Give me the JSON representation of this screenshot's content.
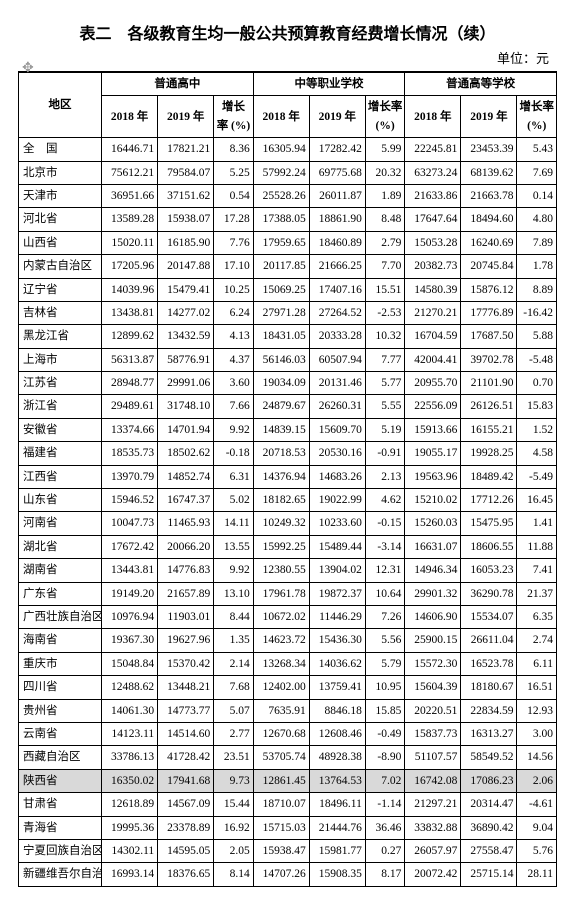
{
  "title": "表二　各级教育生均一般公共预算教育经费增长情况（续）",
  "unit": "单位：元",
  "headers": {
    "region": "地区",
    "group1": "普通高中",
    "group2": "中等职业学校",
    "group3": "普通高等学校",
    "y2018": "2018 年",
    "y2019": "2019 年",
    "rate": "增长率\n(%)"
  },
  "rows": [
    {
      "region": "全　国",
      "a1": "16446.71",
      "a2": "17821.21",
      "a3": "8.36",
      "b1": "16305.94",
      "b2": "17282.42",
      "b3": "5.99",
      "c1": "22245.81",
      "c2": "23453.39",
      "c3": "5.43"
    },
    {
      "region": "北京市",
      "a1": "75612.21",
      "a2": "79584.07",
      "a3": "5.25",
      "b1": "57992.24",
      "b2": "69775.68",
      "b3": "20.32",
      "c1": "63273.24",
      "c2": "68139.62",
      "c3": "7.69"
    },
    {
      "region": "天津市",
      "a1": "36951.66",
      "a2": "37151.62",
      "a3": "0.54",
      "b1": "25528.26",
      "b2": "26011.87",
      "b3": "1.89",
      "c1": "21633.86",
      "c2": "21663.78",
      "c3": "0.14"
    },
    {
      "region": "河北省",
      "a1": "13589.28",
      "a2": "15938.07",
      "a3": "17.28",
      "b1": "17388.05",
      "b2": "18861.90",
      "b3": "8.48",
      "c1": "17647.64",
      "c2": "18494.60",
      "c3": "4.80"
    },
    {
      "region": "山西省",
      "a1": "15020.11",
      "a2": "16185.90",
      "a3": "7.76",
      "b1": "17959.65",
      "b2": "18460.89",
      "b3": "2.79",
      "c1": "15053.28",
      "c2": "16240.69",
      "c3": "7.89"
    },
    {
      "region": "内蒙古自治区",
      "a1": "17205.96",
      "a2": "20147.88",
      "a3": "17.10",
      "b1": "20117.85",
      "b2": "21666.25",
      "b3": "7.70",
      "c1": "20382.73",
      "c2": "20745.84",
      "c3": "1.78"
    },
    {
      "region": "辽宁省",
      "a1": "14039.96",
      "a2": "15479.41",
      "a3": "10.25",
      "b1": "15069.25",
      "b2": "17407.16",
      "b3": "15.51",
      "c1": "14580.39",
      "c2": "15876.12",
      "c3": "8.89"
    },
    {
      "region": "吉林省",
      "a1": "13438.81",
      "a2": "14277.02",
      "a3": "6.24",
      "b1": "27971.28",
      "b2": "27264.52",
      "b3": "-2.53",
      "c1": "21270.21",
      "c2": "17776.89",
      "c3": "-16.42"
    },
    {
      "region": "黑龙江省",
      "a1": "12899.62",
      "a2": "13432.59",
      "a3": "4.13",
      "b1": "18431.05",
      "b2": "20333.28",
      "b3": "10.32",
      "c1": "16704.59",
      "c2": "17687.50",
      "c3": "5.88"
    },
    {
      "region": "上海市",
      "a1": "56313.87",
      "a2": "58776.91",
      "a3": "4.37",
      "b1": "56146.03",
      "b2": "60507.94",
      "b3": "7.77",
      "c1": "42004.41",
      "c2": "39702.78",
      "c3": "-5.48"
    },
    {
      "region": "江苏省",
      "a1": "28948.77",
      "a2": "29991.06",
      "a3": "3.60",
      "b1": "19034.09",
      "b2": "20131.46",
      "b3": "5.77",
      "c1": "20955.70",
      "c2": "21101.90",
      "c3": "0.70"
    },
    {
      "region": "浙江省",
      "a1": "29489.61",
      "a2": "31748.10",
      "a3": "7.66",
      "b1": "24879.67",
      "b2": "26260.31",
      "b3": "5.55",
      "c1": "22556.09",
      "c2": "26126.51",
      "c3": "15.83"
    },
    {
      "region": "安徽省",
      "a1": "13374.66",
      "a2": "14701.94",
      "a3": "9.92",
      "b1": "14839.15",
      "b2": "15609.70",
      "b3": "5.19",
      "c1": "15913.66",
      "c2": "16155.21",
      "c3": "1.52"
    },
    {
      "region": "福建省",
      "a1": "18535.73",
      "a2": "18502.62",
      "a3": "-0.18",
      "b1": "20718.53",
      "b2": "20530.16",
      "b3": "-0.91",
      "c1": "19055.17",
      "c2": "19928.25",
      "c3": "4.58"
    },
    {
      "region": "江西省",
      "a1": "13970.79",
      "a2": "14852.74",
      "a3": "6.31",
      "b1": "14376.94",
      "b2": "14683.26",
      "b3": "2.13",
      "c1": "19563.96",
      "c2": "18489.42",
      "c3": "-5.49"
    },
    {
      "region": "山东省",
      "a1": "15946.52",
      "a2": "16747.37",
      "a3": "5.02",
      "b1": "18182.65",
      "b2": "19022.99",
      "b3": "4.62",
      "c1": "15210.02",
      "c2": "17712.26",
      "c3": "16.45"
    },
    {
      "region": "河南省",
      "a1": "10047.73",
      "a2": "11465.93",
      "a3": "14.11",
      "b1": "10249.32",
      "b2": "10233.60",
      "b3": "-0.15",
      "c1": "15260.03",
      "c2": "15475.95",
      "c3": "1.41"
    },
    {
      "region": "湖北省",
      "a1": "17672.42",
      "a2": "20066.20",
      "a3": "13.55",
      "b1": "15992.25",
      "b2": "15489.44",
      "b3": "-3.14",
      "c1": "16631.07",
      "c2": "18606.55",
      "c3": "11.88"
    },
    {
      "region": "湖南省",
      "a1": "13443.81",
      "a2": "14776.83",
      "a3": "9.92",
      "b1": "12380.55",
      "b2": "13904.02",
      "b3": "12.31",
      "c1": "14946.34",
      "c2": "16053.23",
      "c3": "7.41"
    },
    {
      "region": "广东省",
      "a1": "19149.20",
      "a2": "21657.89",
      "a3": "13.10",
      "b1": "17961.78",
      "b2": "19872.37",
      "b3": "10.64",
      "c1": "29901.32",
      "c2": "36290.78",
      "c3": "21.37"
    },
    {
      "region": "广西壮族自治区",
      "a1": "10976.94",
      "a2": "11903.01",
      "a3": "8.44",
      "b1": "10672.02",
      "b2": "11446.29",
      "b3": "7.26",
      "c1": "14606.90",
      "c2": "15534.07",
      "c3": "6.35"
    },
    {
      "region": "海南省",
      "a1": "19367.30",
      "a2": "19627.96",
      "a3": "1.35",
      "b1": "14623.72",
      "b2": "15436.30",
      "b3": "5.56",
      "c1": "25900.15",
      "c2": "26611.04",
      "c3": "2.74"
    },
    {
      "region": "重庆市",
      "a1": "15048.84",
      "a2": "15370.42",
      "a3": "2.14",
      "b1": "13268.34",
      "b2": "14036.62",
      "b3": "5.79",
      "c1": "15572.30",
      "c2": "16523.78",
      "c3": "6.11"
    },
    {
      "region": "四川省",
      "a1": "12488.62",
      "a2": "13448.21",
      "a3": "7.68",
      "b1": "12402.00",
      "b2": "13759.41",
      "b3": "10.95",
      "c1": "15604.39",
      "c2": "18180.67",
      "c3": "16.51"
    },
    {
      "region": "贵州省",
      "a1": "14061.30",
      "a2": "14773.77",
      "a3": "5.07",
      "b1": "7635.91",
      "b2": "8846.18",
      "b3": "15.85",
      "c1": "20220.51",
      "c2": "22834.59",
      "c3": "12.93"
    },
    {
      "region": "云南省",
      "a1": "14123.11",
      "a2": "14514.60",
      "a3": "2.77",
      "b1": "12670.68",
      "b2": "12608.46",
      "b3": "-0.49",
      "c1": "15837.73",
      "c2": "16313.27",
      "c3": "3.00"
    },
    {
      "region": "西藏自治区",
      "a1": "33786.13",
      "a2": "41728.42",
      "a3": "23.51",
      "b1": "53705.74",
      "b2": "48928.38",
      "b3": "-8.90",
      "c1": "51107.57",
      "c2": "58549.52",
      "c3": "14.56"
    },
    {
      "region": "陕西省",
      "a1": "16350.02",
      "a2": "17941.68",
      "a3": "9.73",
      "b1": "12861.45",
      "b2": "13764.53",
      "b3": "7.02",
      "c1": "16742.08",
      "c2": "17086.23",
      "c3": "2.06",
      "hl": true
    },
    {
      "region": "甘肃省",
      "a1": "12618.89",
      "a2": "14567.09",
      "a3": "15.44",
      "b1": "18710.07",
      "b2": "18496.11",
      "b3": "-1.14",
      "c1": "21297.21",
      "c2": "20314.47",
      "c3": "-4.61"
    },
    {
      "region": "青海省",
      "a1": "19995.36",
      "a2": "23378.89",
      "a3": "16.92",
      "b1": "15715.03",
      "b2": "21444.76",
      "b3": "36.46",
      "c1": "33832.88",
      "c2": "36890.42",
      "c3": "9.04"
    },
    {
      "region": "宁夏回族自治区",
      "a1": "14302.11",
      "a2": "14595.05",
      "a3": "2.05",
      "b1": "15938.47",
      "b2": "15981.77",
      "b3": "0.27",
      "c1": "26057.97",
      "c2": "27558.47",
      "c3": "5.76"
    },
    {
      "region": "新疆维吾尔自治",
      "a1": "16993.14",
      "a2": "18376.65",
      "a3": "8.14",
      "b1": "14707.26",
      "b2": "15908.35",
      "b3": "8.17",
      "c1": "20072.42",
      "c2": "25715.14",
      "c3": "28.11"
    }
  ]
}
